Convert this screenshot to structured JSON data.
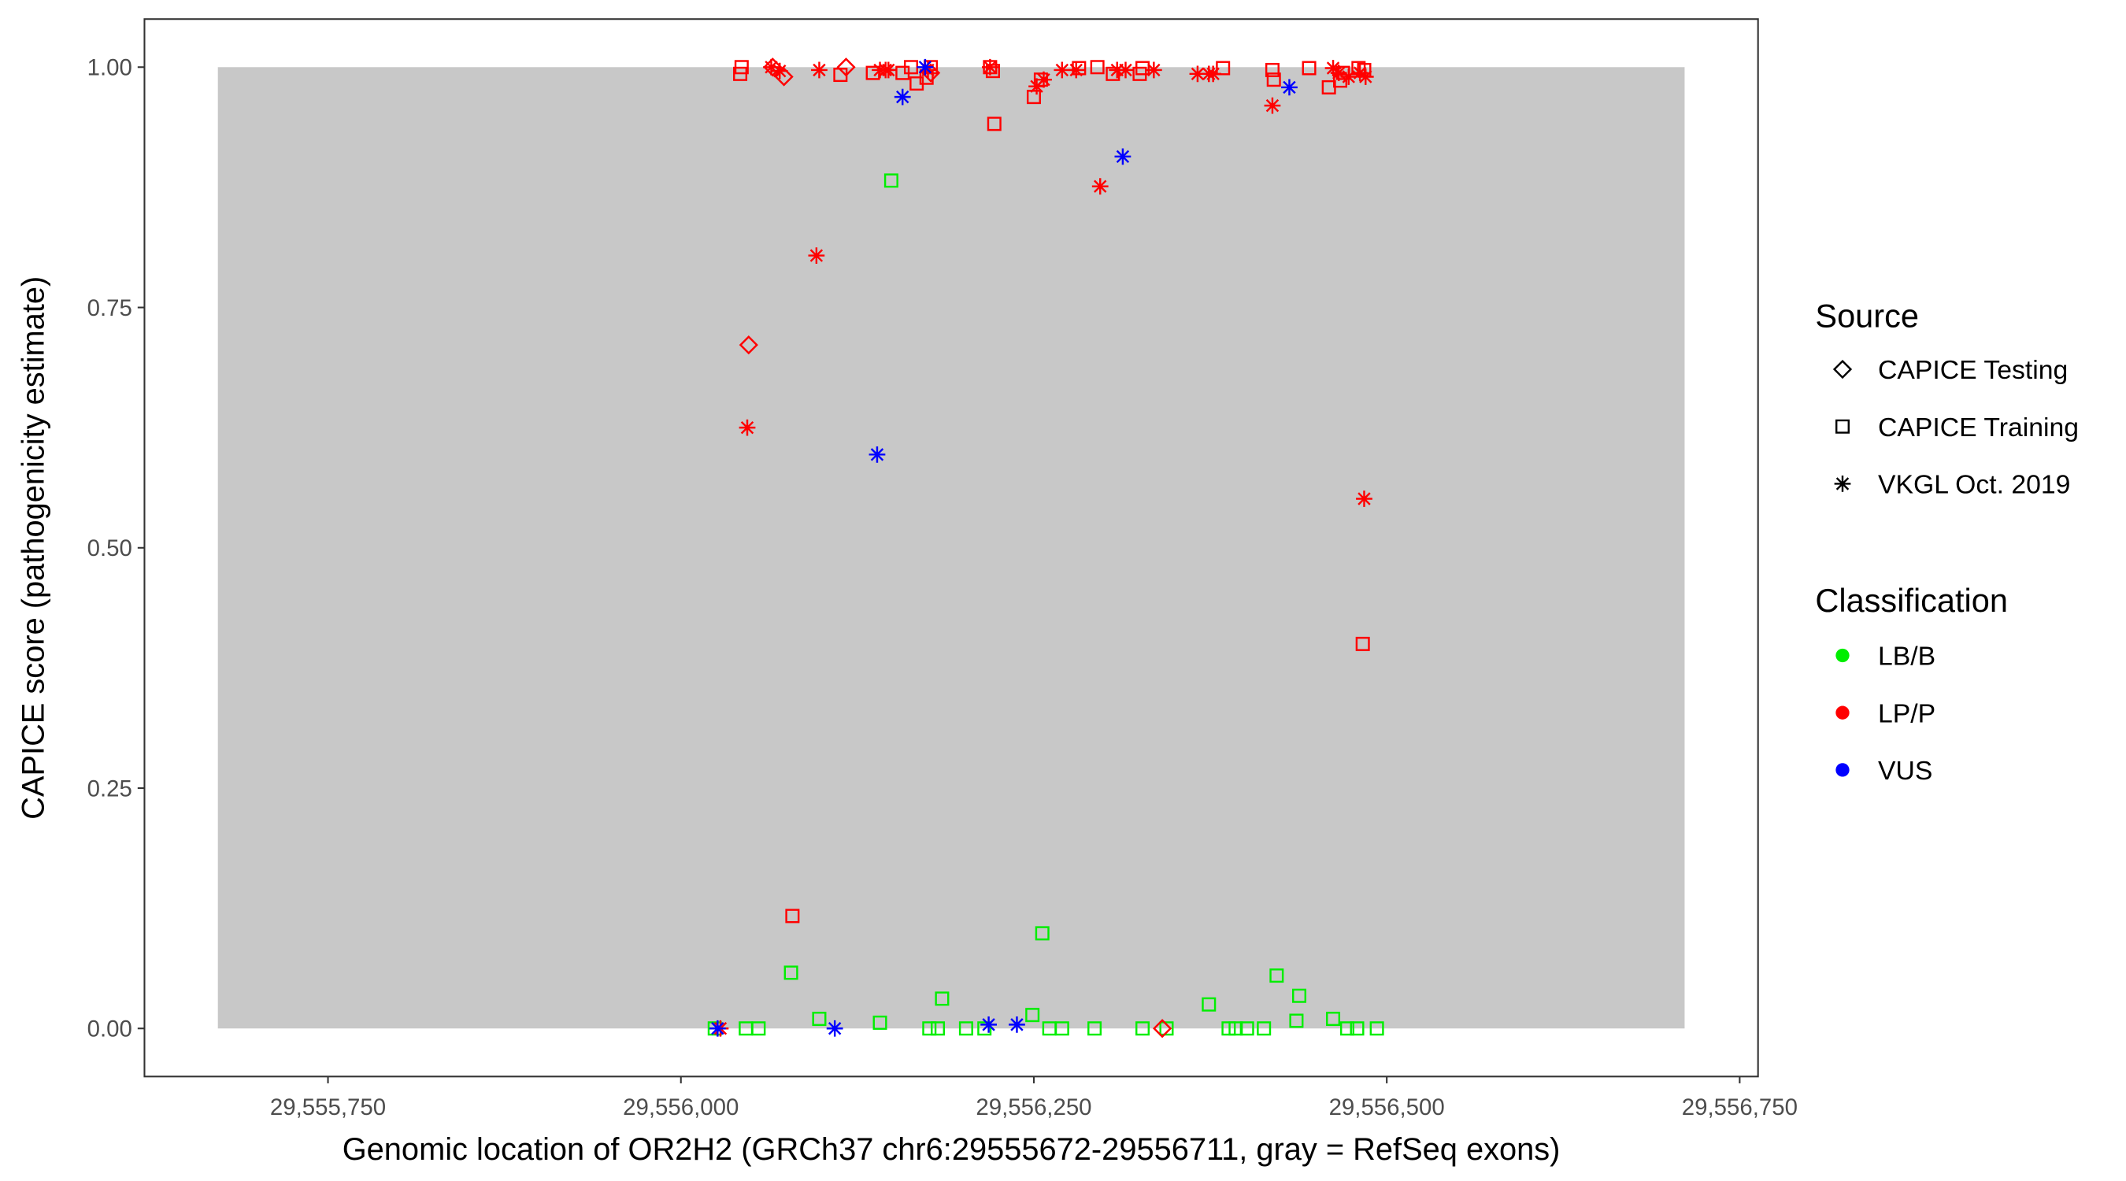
{
  "chart_data": {
    "type": "scatter",
    "x_label": "Genomic location of OR2H2 (GRCh37 chr6:29555672-29556711, gray = RefSeq exons)",
    "y_label": "CAPICE score (pathogenicity estimate)",
    "xlim": [
      29555620,
      29556763
    ],
    "ylim": [
      -0.05,
      1.05
    ],
    "xticks": [
      {
        "value": 29555750,
        "label": "29,555,750"
      },
      {
        "value": 29556000,
        "label": "29,556,000"
      },
      {
        "value": 29556250,
        "label": "29,556,250"
      },
      {
        "value": 29556500,
        "label": "29,556,500"
      },
      {
        "value": 29556750,
        "label": "29,556,750"
      }
    ],
    "yticks": [
      {
        "value": 0,
        "label": "0.00"
      },
      {
        "value": 0.25,
        "label": "0.25"
      },
      {
        "value": 0.5,
        "label": "0.50"
      },
      {
        "value": 0.75,
        "label": "0.75"
      },
      {
        "value": 1,
        "label": "1.00"
      }
    ],
    "exons": [
      {
        "start": 29555672,
        "end": 29556711,
        "ymin": 0,
        "ymax": 1,
        "color": "#c8c8c8"
      }
    ],
    "legend": {
      "source": {
        "title": "Source",
        "items": [
          {
            "name": "CAPICE Testing",
            "shape": "diamond"
          },
          {
            "name": "CAPICE Training",
            "shape": "square"
          },
          {
            "name": "VKGL Oct. 2019",
            "shape": "star"
          }
        ]
      },
      "classification": {
        "title": "Classification",
        "items": [
          {
            "name": "LB/B",
            "color": "#00ee00"
          },
          {
            "name": "LP/P",
            "color": "#ff0000"
          },
          {
            "name": "VUS",
            "color": "#0000ff"
          }
        ]
      }
    },
    "series": [
      {
        "source": "CAPICE Training",
        "classification": "LB/B",
        "x": [
          29556149,
          29556078,
          29556256,
          29556422,
          29556185,
          29556438,
          29556374,
          29556249,
          29556098,
          29556141,
          29556436,
          29556462,
          29556024,
          29556046,
          29556055,
          29556176,
          29556182,
          29556202,
          29556215,
          29556261,
          29556270,
          29556293,
          29556327,
          29556344,
          29556388,
          29556393,
          29556401,
          29556413,
          29556472,
          29556479,
          29556493
        ],
        "y": [
          0.882,
          0.058,
          0.099,
          0.055,
          0.031,
          0.034,
          0.025,
          0.014,
          0.01,
          0.006,
          0.008,
          0.01,
          0,
          0,
          0,
          0,
          0,
          0,
          0,
          0,
          0,
          0,
          0,
          0,
          0,
          0,
          0,
          0,
          0,
          0,
          0
        ]
      },
      {
        "source": "CAPICE Training",
        "classification": "LP/P",
        "x": [
          29556042,
          29556043,
          29556113,
          29556136,
          29556157,
          29556163,
          29556167,
          29556174,
          29556177,
          29556219,
          29556221,
          29556250,
          29556255,
          29556282,
          29556295,
          29556306,
          29556325,
          29556327,
          29556384,
          29556419,
          29556420,
          29556445,
          29556459,
          29556467,
          29556469,
          29556480,
          29556484,
          29556222,
          29556483,
          29556079
        ],
        "y": [
          0.993,
          1,
          0.992,
          0.994,
          0.994,
          1,
          0.983,
          0.989,
          1,
          1,
          0.996,
          0.969,
          0.987,
          0.999,
          1,
          0.993,
          0.993,
          0.999,
          0.999,
          0.997,
          0.987,
          0.999,
          0.979,
          0.986,
          0.994,
          0.999,
          0.997,
          0.941,
          0.4,
          0.117
        ]
      },
      {
        "source": "CAPICE Testing",
        "classification": "LP/P",
        "x": [
          29556065,
          29556073,
          29556117,
          29556177,
          29556048,
          29556341
        ],
        "y": [
          1,
          0.99,
          1,
          0.994,
          0.711,
          0
        ]
      },
      {
        "source": "VKGL Oct. 2019",
        "classification": "LP/P",
        "x": [
          29556064,
          29556070,
          29556098,
          29556141,
          29556145,
          29556147,
          29556175,
          29556219,
          29556252,
          29556257,
          29556270,
          29556280,
          29556309,
          29556315,
          29556335,
          29556366,
          29556374,
          29556377,
          29556462,
          29556466,
          29556473,
          29556481,
          29556485,
          29556419,
          29556297,
          29556096,
          29556047,
          29556484,
          29556028
        ],
        "y": [
          1,
          0.996,
          0.997,
          0.997,
          0.997,
          0.997,
          0.997,
          1,
          0.98,
          0.987,
          0.997,
          0.997,
          0.997,
          0.997,
          0.997,
          0.993,
          0.993,
          0.993,
          0.999,
          0.994,
          0.99,
          0.994,
          0.99,
          0.96,
          0.876,
          0.804,
          0.625,
          0.551,
          0
        ]
      },
      {
        "source": "VKGL Oct. 2019",
        "classification": "VUS",
        "x": [
          29556157,
          29556173,
          29556431,
          29556313,
          29556139,
          29556026,
          29556109,
          29556218,
          29556238
        ],
        "y": [
          0.969,
          1,
          0.979,
          0.907,
          0.597,
          0,
          0,
          0.004,
          0.004
        ]
      }
    ]
  }
}
